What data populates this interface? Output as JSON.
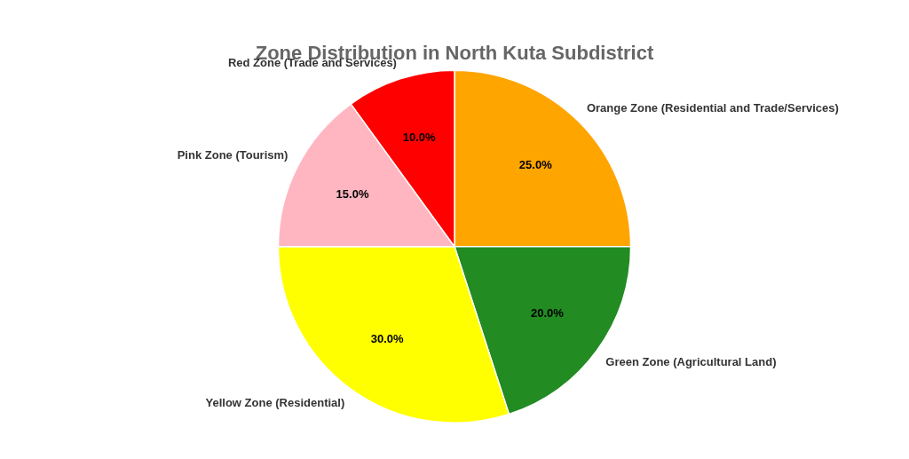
{
  "chart_data": {
    "type": "pie",
    "title": "Zone Distribution in North Kuta Subdistrict",
    "categories": [
      "Orange Zone (Residential and Trade/Services)",
      "Green Zone (Agricultural Land)",
      "Yellow Zone (Residential)",
      "Pink Zone (Tourism)",
      "Red Zone (Trade and Services)"
    ],
    "values": [
      25.0,
      20.0,
      30.0,
      15.0,
      10.0
    ],
    "value_labels": [
      "25.0%",
      "20.0%",
      "30.0%",
      "15.0%",
      "10.0%"
    ],
    "colors": [
      "#FFA500",
      "#228B22",
      "#FFFF00",
      "#FFB6C1",
      "#FF0000"
    ],
    "data_labels": true
  }
}
